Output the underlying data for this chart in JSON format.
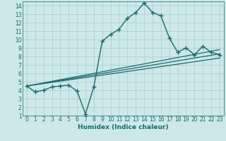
{
  "xlabel": "Humidex (Indice chaleur)",
  "bg_color": "#cce8e8",
  "grid_color": "#aacccc",
  "line_color": "#1a6b6b",
  "xlim": [
    -0.5,
    23.5
  ],
  "ylim": [
    1,
    14.5
  ],
  "xticks": [
    0,
    1,
    2,
    3,
    4,
    5,
    6,
    7,
    8,
    9,
    10,
    11,
    12,
    13,
    14,
    15,
    16,
    17,
    18,
    19,
    20,
    21,
    22,
    23
  ],
  "yticks": [
    1,
    2,
    3,
    4,
    5,
    6,
    7,
    8,
    9,
    10,
    11,
    12,
    13,
    14
  ],
  "main_x": [
    0,
    1,
    2,
    3,
    4,
    5,
    6,
    7,
    8,
    9,
    10,
    11,
    12,
    13,
    14,
    15,
    16,
    17,
    18,
    19,
    20,
    21,
    22,
    23
  ],
  "main_y": [
    4.5,
    3.8,
    4.0,
    4.4,
    4.5,
    4.6,
    3.9,
    1.2,
    4.4,
    9.8,
    10.6,
    11.2,
    12.5,
    13.2,
    14.3,
    13.2,
    12.8,
    10.2,
    8.5,
    9.0,
    8.2,
    9.2,
    8.5,
    8.2
  ],
  "ref_lines": [
    {
      "x0": 0,
      "y0": 4.5,
      "x1": 23,
      "y1": 8.8
    },
    {
      "x0": 0,
      "y0": 4.5,
      "x1": 23,
      "y1": 8.3
    },
    {
      "x0": 0,
      "y0": 4.5,
      "x1": 23,
      "y1": 7.8
    }
  ]
}
